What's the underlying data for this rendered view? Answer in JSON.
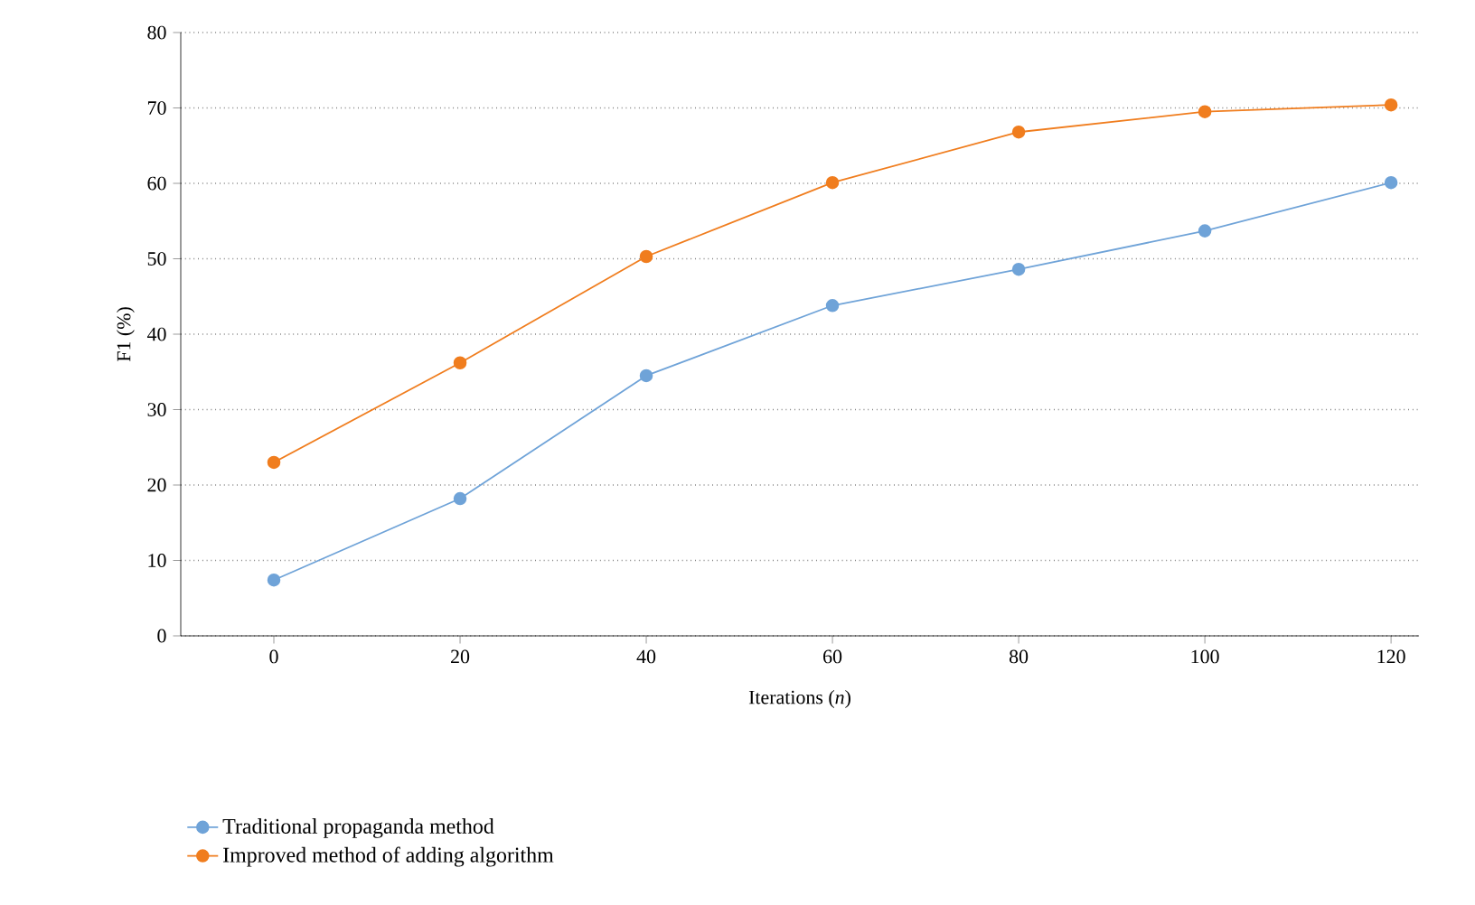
{
  "chart_data": {
    "type": "line",
    "xlabel": "Iterations (*n*)",
    "ylabel": "F1 (%)",
    "x": [
      0,
      20,
      40,
      60,
      80,
      100,
      120
    ],
    "series": [
      {
        "name": "Traditional propaganda method",
        "color": "#6fa3d8",
        "values": [
          7.4,
          18.2,
          34.5,
          43.8,
          48.6,
          53.7,
          60.1
        ]
      },
      {
        "name": "Improved method of adding algorithm",
        "color": "#f07d1e",
        "values": [
          23,
          36.2,
          50.3,
          60.1,
          66.8,
          69.5,
          70.4
        ]
      }
    ],
    "xlim": [
      -10,
      123
    ],
    "xticks": [
      0,
      20,
      40,
      60,
      80,
      100,
      120
    ],
    "ylim": [
      0,
      80
    ],
    "yticks": [
      0,
      10,
      20,
      30,
      40,
      50,
      60,
      70,
      80
    ],
    "grid": "y",
    "legend": "bottom left",
    "marker": "circle",
    "line_style": "solid"
  }
}
